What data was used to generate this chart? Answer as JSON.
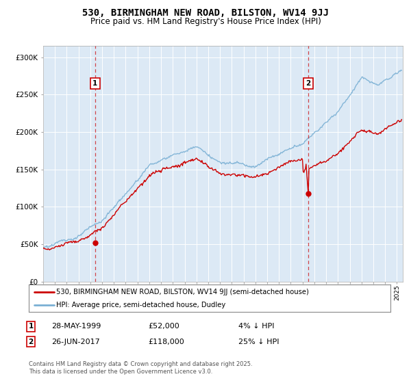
{
  "title": "530, BIRMINGHAM NEW ROAD, BILSTON, WV14 9JJ",
  "subtitle": "Price paid vs. HM Land Registry's House Price Index (HPI)",
  "background_color": "#dce9f5",
  "ylabel_ticks": [
    "£0",
    "£50K",
    "£100K",
    "£150K",
    "£200K",
    "£250K",
    "£300K"
  ],
  "ytick_values": [
    0,
    50000,
    100000,
    150000,
    200000,
    250000,
    300000
  ],
  "ylim": [
    0,
    315000
  ],
  "xlim_start": 1995.0,
  "xlim_end": 2025.5,
  "sale1_x": 1999.41,
  "sale1_y": 52000,
  "sale2_x": 2017.48,
  "sale2_y": 118000,
  "line1_color": "#cc0000",
  "line2_color": "#7ab0d4",
  "legend1_label": "530, BIRMINGHAM NEW ROAD, BILSTON, WV14 9JJ (semi-detached house)",
  "legend2_label": "HPI: Average price, semi-detached house, Dudley",
  "footer": "Contains HM Land Registry data © Crown copyright and database right 2025.\nThis data is licensed under the Open Government Licence v3.0.",
  "marker_box_color": "#cc0000",
  "ann1_date": "28-MAY-1999",
  "ann1_price": "£52,000",
  "ann1_hpi": "4% ↓ HPI",
  "ann2_date": "26-JUN-2017",
  "ann2_price": "£118,000",
  "ann2_hpi": "25% ↓ HPI"
}
